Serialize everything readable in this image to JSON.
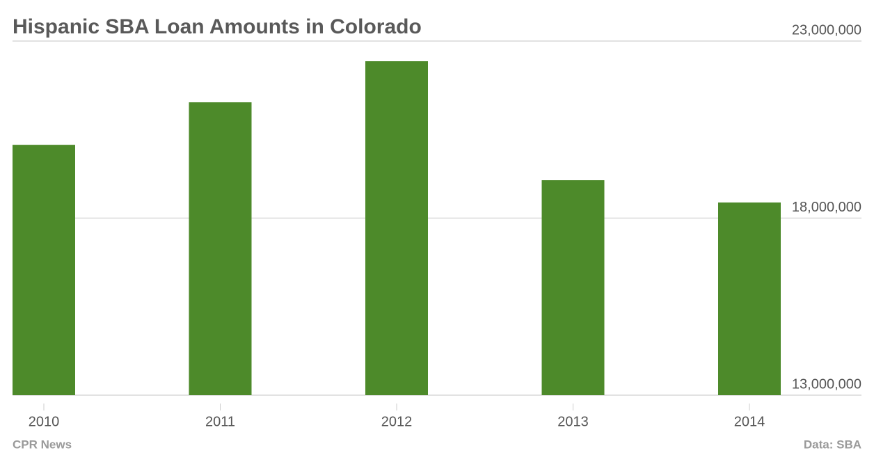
{
  "chart_data": {
    "type": "bar",
    "title": "Hispanic SBA Loan Amounts in Colorado",
    "categories": [
      "2010",
      "2011",
      "2012",
      "2013",
      "2014"
    ],
    "values": [
      20070000,
      21270000,
      22430000,
      19070000,
      18440000
    ],
    "color": "#4d8a2a",
    "ylim": [
      13000000,
      23000000
    ],
    "yticks": [
      {
        "value": 13000000,
        "label": "13,000,000"
      },
      {
        "value": 18000000,
        "label": "18,000,000"
      },
      {
        "value": 23000000,
        "label": "23,000,000"
      }
    ],
    "grid": true,
    "source_left": "CPR News",
    "source_right": "Data: SBA"
  }
}
